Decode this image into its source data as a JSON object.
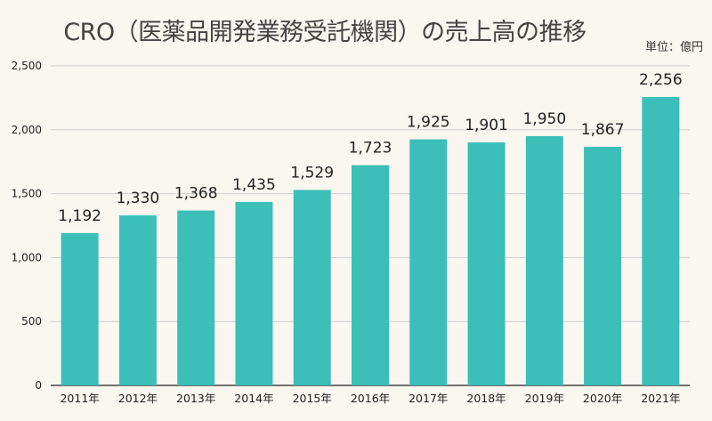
{
  "chart_data": {
    "type": "bar",
    "title": "CRO（医薬品開発業務受託機関）の売上高の推移",
    "unit_label": "単位：億円",
    "categories": [
      "2011年",
      "2012年",
      "2013年",
      "2014年",
      "2015年",
      "2016年",
      "2017年",
      "2018年",
      "2019年",
      "2020年",
      "2021年"
    ],
    "values": [
      1192,
      1330,
      1368,
      1435,
      1529,
      1723,
      1925,
      1901,
      1950,
      1867,
      2256
    ],
    "data_labels": [
      "1,192",
      "1,330",
      "1,368",
      "1,435",
      "1,529",
      "1,723",
      "1,925",
      "1,901",
      "1,950",
      "1,867",
      "2,256"
    ],
    "yticks": [
      0,
      500,
      1000,
      1500,
      2000,
      2500
    ],
    "ytick_labels": [
      "0",
      "500",
      "1,000",
      "1,500",
      "2,000",
      "2,500"
    ],
    "ylim": [
      0,
      2500
    ],
    "grid": true,
    "colors": {
      "bar": "#3bbfb8",
      "background": "#faf7f1",
      "grid": "#cfcfcf"
    }
  }
}
